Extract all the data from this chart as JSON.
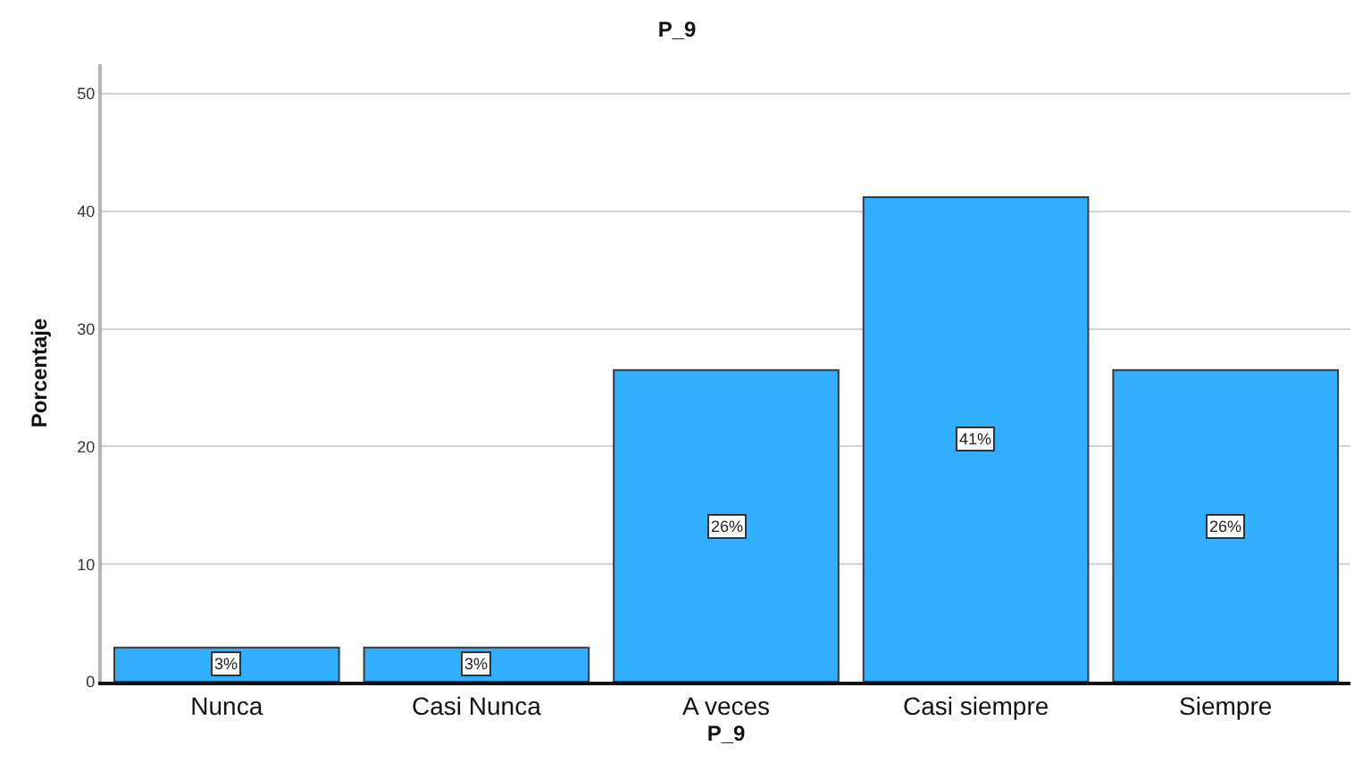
{
  "chart_data": {
    "type": "bar",
    "title": "P_9",
    "xlabel": "P_9",
    "ylabel": "Porcentaje",
    "categories": [
      "Nunca",
      "Casi Nunca",
      "A veces",
      "Casi siempre",
      "Siempre"
    ],
    "values": [
      2.9,
      2.9,
      26.5,
      41.2,
      26.5
    ],
    "value_labels": [
      "3%",
      "3%",
      "26%",
      "41%",
      "26%"
    ],
    "color": "#31aeff",
    "ylim": [
      0,
      52.5
    ],
    "yticks": [
      0,
      10,
      20,
      30,
      40,
      50
    ],
    "grid": "y"
  }
}
